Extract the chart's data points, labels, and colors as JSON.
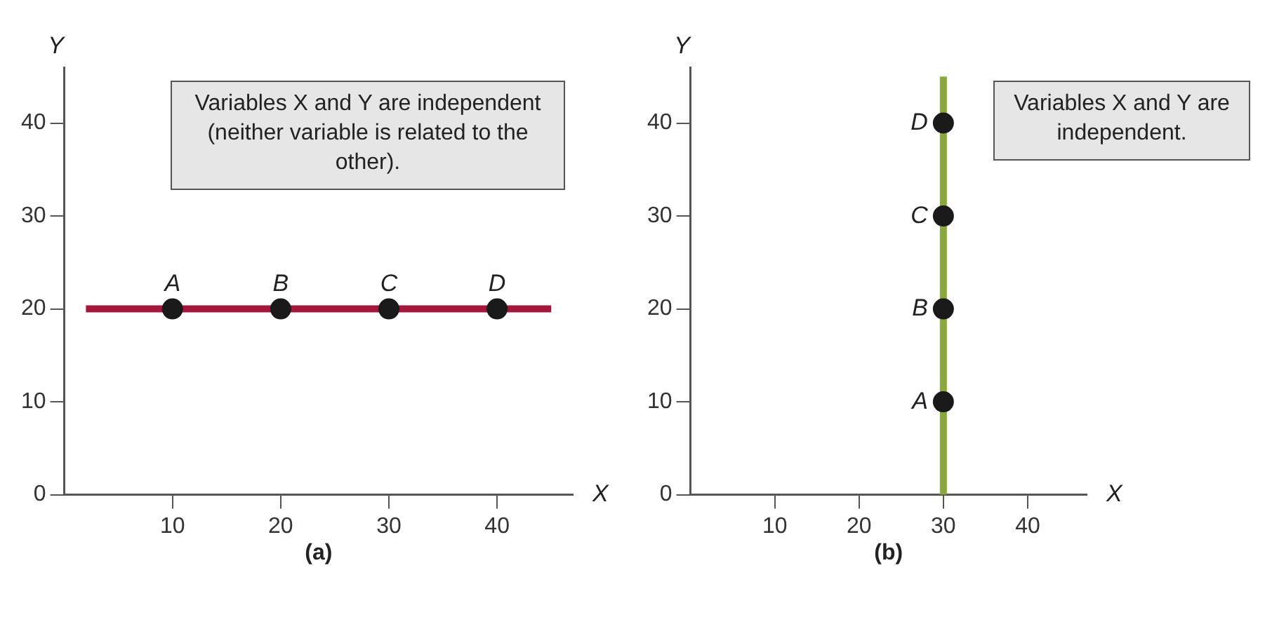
{
  "chart_data": [
    {
      "type": "line",
      "title": "(a)",
      "xlabel": "X",
      "ylabel": "Y",
      "xlim": [
        0,
        47
      ],
      "ylim": [
        0,
        46
      ],
      "xticks": [
        10,
        20,
        30,
        40
      ],
      "yticks": [
        0,
        10,
        20,
        30,
        40
      ],
      "grid": false,
      "legend": false,
      "series": [
        {
          "color": "#a3173c",
          "x": [
            2,
            45
          ],
          "values": [
            20,
            20
          ]
        },
        {
          "type": "scatter",
          "marker": "circle",
          "color": "#1a1a1a",
          "x": [
            10,
            20,
            30,
            40
          ],
          "values": [
            20,
            20,
            20,
            20
          ]
        }
      ],
      "annotations": [
        "Variables X and Y are independent (neither variable is related to the other).",
        {
          "text": "A",
          "x": 10,
          "y": 20
        },
        {
          "text": "B",
          "x": 20,
          "y": 20
        },
        {
          "text": "C",
          "x": 30,
          "y": 20
        },
        {
          "text": "D",
          "x": 40,
          "y": 20
        }
      ]
    },
    {
      "type": "line",
      "title": "(b)",
      "xlabel": "X",
      "ylabel": "Y",
      "xlim": [
        0,
        47
      ],
      "ylim": [
        0,
        46
      ],
      "xticks": [
        10,
        20,
        30,
        40
      ],
      "yticks": [
        0,
        10,
        20,
        30,
        40
      ],
      "grid": false,
      "legend": false,
      "series": [
        {
          "color": "#8ba83c",
          "x": [
            30,
            30
          ],
          "values": [
            0,
            45
          ]
        },
        {
          "type": "scatter",
          "marker": "circle",
          "color": "#1a1a1a",
          "x": [
            30,
            30,
            30,
            30
          ],
          "values": [
            10,
            20,
            30,
            40
          ]
        }
      ],
      "annotations": [
        "Variables X and Y are independent.",
        {
          "text": "A",
          "x": 30,
          "y": 10
        },
        {
          "text": "B",
          "x": 30,
          "y": 20
        },
        {
          "text": "C",
          "x": 30,
          "y": 30
        },
        {
          "text": "D",
          "x": 30,
          "y": 40
        }
      ]
    }
  ]
}
